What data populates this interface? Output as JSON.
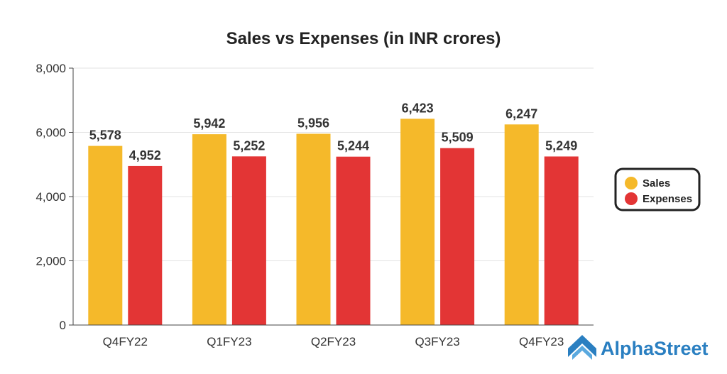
{
  "chart_data": {
    "type": "bar",
    "title": "Sales vs Expenses (in INR crores)",
    "categories": [
      "Q4FY22",
      "Q1FY23",
      "Q2FY23",
      "Q3FY23",
      "Q4FY23"
    ],
    "series": [
      {
        "name": "Sales",
        "color": "#F5B92A",
        "values": [
          5578,
          5942,
          5956,
          6423,
          6247
        ]
      },
      {
        "name": "Expenses",
        "color": "#E33535",
        "values": [
          4952,
          5252,
          5244,
          5509,
          5249
        ]
      }
    ],
    "value_labels": {
      "Sales": [
        "5,578",
        "5,942",
        "5,956",
        "6,423",
        "6,247"
      ],
      "Expenses": [
        "4,952",
        "5,252",
        "5,244",
        "5,509",
        "5,249"
      ]
    },
    "ylim": [
      0,
      8000
    ],
    "yticks": [
      0,
      2000,
      4000,
      6000,
      8000
    ],
    "ytick_labels": [
      "0",
      "2,000",
      "4,000",
      "6,000",
      "8,000"
    ],
    "xlabel": "",
    "ylabel": "",
    "grid": true,
    "legend_position": "right"
  },
  "branding": {
    "logo_text": "AlphaStreet",
    "logo_icon": "alphastreet-chevron-icon",
    "color": "#2A7FC1"
  }
}
